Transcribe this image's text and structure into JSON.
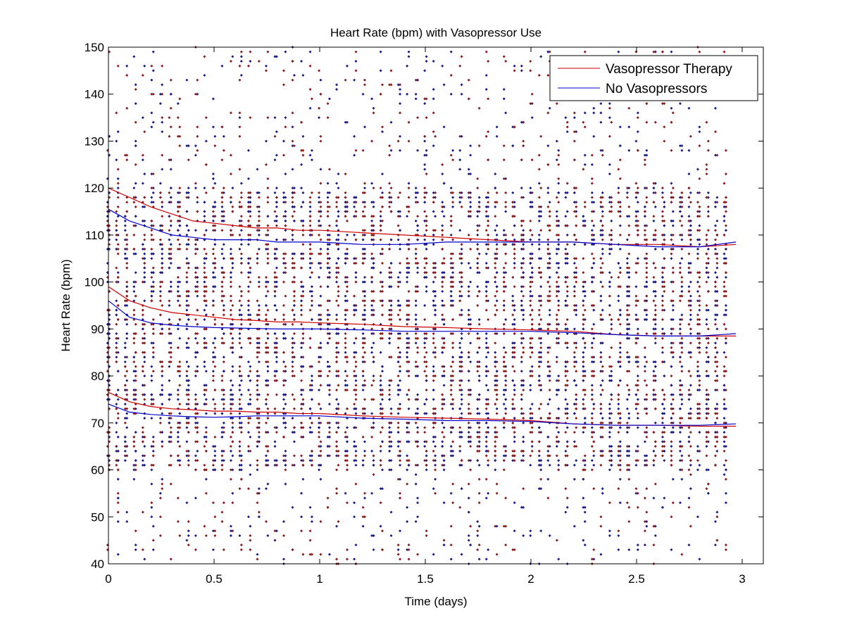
{
  "chart_data": {
    "type": "scatter",
    "title": "Heart Rate (bpm) with Vasopressor Use",
    "xlabel": "Time (days)",
    "ylabel": "Heart Rate (bpm)",
    "xlim": [
      0,
      3.1
    ],
    "ylim": [
      40,
      150
    ],
    "xticks": [
      0,
      0.5,
      1,
      1.5,
      2,
      2.5,
      3
    ],
    "xtick_labels": [
      "0",
      "0.5",
      "1",
      "1.5",
      "2",
      "2.5",
      "3"
    ],
    "yticks": [
      40,
      50,
      60,
      70,
      80,
      90,
      100,
      110,
      120,
      130,
      140,
      150
    ],
    "ytick_labels": [
      "40",
      "50",
      "60",
      "70",
      "80",
      "90",
      "100",
      "110",
      "120",
      "130",
      "140",
      "150"
    ],
    "grid": false,
    "legend_position": "top-right",
    "legend": [
      {
        "label": "Vasopressor Therapy",
        "color": "#cc0000"
      },
      {
        "label": "No Vasopressors",
        "color": "#0000cc"
      }
    ],
    "scatter": {
      "note": "dense hourly measurements per group, values spread across 40-150 bpm",
      "x_step_days": 0.0417,
      "x_range": [
        0,
        2.96
      ],
      "y_range": [
        40,
        150
      ],
      "colors": {
        "vasopressor": "#8b1a1a",
        "no_vasopressor": "#1a1a8b"
      }
    },
    "series": [
      {
        "name": "Vasopressor Therapy - 75th percentile",
        "color": "#cc0000",
        "x": [
          0,
          0.1,
          0.2,
          0.3,
          0.4,
          0.5,
          0.6,
          0.7,
          0.8,
          0.9,
          1.0,
          1.2,
          1.4,
          1.6,
          1.8,
          2.0,
          2.2,
          2.4,
          2.6,
          2.8,
          2.97
        ],
        "y": [
          120,
          118,
          116,
          114.5,
          113,
          112.5,
          112,
          111.5,
          111.5,
          111,
          111,
          110.5,
          110,
          109.5,
          109,
          108.5,
          108.5,
          108,
          108,
          107.5,
          108
        ]
      },
      {
        "name": "No Vasopressors - 75th percentile",
        "color": "#0000cc",
        "x": [
          0,
          0.1,
          0.2,
          0.3,
          0.4,
          0.5,
          0.6,
          0.7,
          0.8,
          0.9,
          1.0,
          1.2,
          1.4,
          1.6,
          1.8,
          2.0,
          2.2,
          2.4,
          2.6,
          2.8,
          2.97
        ],
        "y": [
          115.5,
          113,
          111.5,
          110,
          109.5,
          109,
          109,
          109,
          108.5,
          108.5,
          108.5,
          108,
          108,
          108.5,
          108.5,
          108.5,
          108.5,
          108,
          107.5,
          107.5,
          108.5
        ]
      },
      {
        "name": "Vasopressor Therapy - median",
        "color": "#cc0000",
        "x": [
          0,
          0.1,
          0.2,
          0.3,
          0.4,
          0.5,
          0.6,
          0.7,
          0.8,
          0.9,
          1.0,
          1.2,
          1.4,
          1.6,
          1.8,
          2.0,
          2.2,
          2.4,
          2.6,
          2.8,
          2.97
        ],
        "y": [
          99,
          96,
          94.5,
          93.5,
          93,
          92.5,
          92,
          91.8,
          91.5,
          91.5,
          91.3,
          91,
          90.5,
          90.3,
          90,
          89.8,
          89.5,
          88.8,
          88.5,
          88.5,
          88.5
        ]
      },
      {
        "name": "No Vasopressors - median",
        "color": "#0000cc",
        "x": [
          0,
          0.1,
          0.2,
          0.3,
          0.4,
          0.5,
          0.6,
          0.7,
          0.8,
          0.9,
          1.0,
          1.2,
          1.4,
          1.6,
          1.8,
          2.0,
          2.2,
          2.4,
          2.6,
          2.8,
          2.97
        ],
        "y": [
          96,
          92.5,
          91.3,
          90.8,
          90.5,
          90.3,
          90.2,
          90.1,
          90,
          90,
          90,
          89.8,
          89.5,
          89.5,
          89.5,
          89.5,
          89.2,
          88.8,
          88.5,
          88.5,
          89
        ]
      },
      {
        "name": "Vasopressor Therapy - 25th percentile",
        "color": "#cc0000",
        "x": [
          0,
          0.1,
          0.2,
          0.3,
          0.4,
          0.5,
          0.6,
          0.7,
          0.8,
          0.9,
          1.0,
          1.2,
          1.4,
          1.6,
          1.8,
          2.0,
          2.2,
          2.4,
          2.6,
          2.8,
          2.97
        ],
        "y": [
          76.5,
          74.5,
          73.5,
          73,
          72.8,
          72.5,
          72.5,
          72.3,
          72.3,
          72,
          72,
          71.5,
          71.2,
          71,
          70.8,
          70.5,
          69.8,
          69.5,
          69.5,
          69.3,
          69.3
        ]
      },
      {
        "name": "No Vasopressors - 25th percentile",
        "color": "#0000cc",
        "x": [
          0,
          0.1,
          0.2,
          0.3,
          0.4,
          0.5,
          0.6,
          0.7,
          0.8,
          0.9,
          1.0,
          1.2,
          1.4,
          1.6,
          1.8,
          2.0,
          2.2,
          2.4,
          2.6,
          2.8,
          2.97
        ],
        "y": [
          74,
          72.3,
          71.8,
          71.5,
          71.3,
          71.2,
          71.3,
          71.5,
          71.5,
          71.5,
          71.5,
          71,
          70.8,
          70.5,
          70.5,
          70.3,
          69.8,
          69.5,
          69.5,
          69.5,
          69.8
        ]
      }
    ]
  }
}
